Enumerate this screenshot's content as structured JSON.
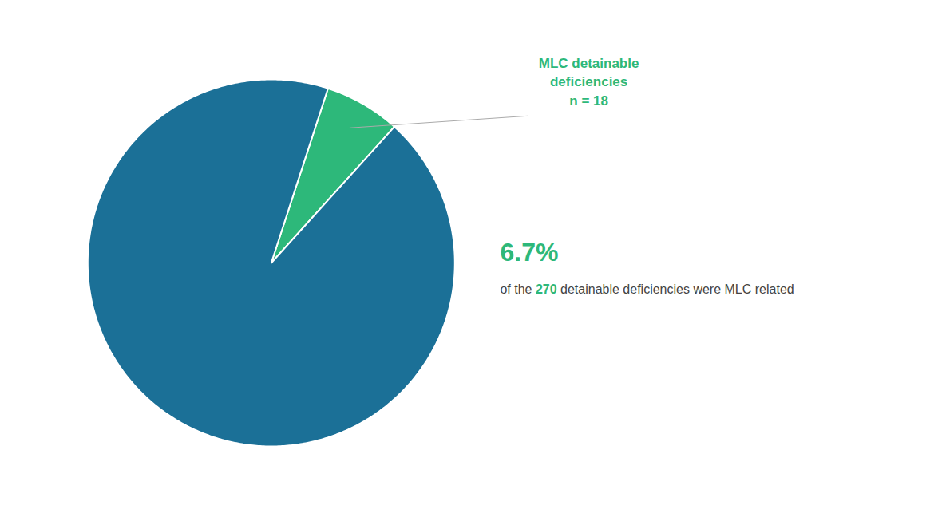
{
  "chart_data": {
    "type": "pie",
    "values": [
      6.7,
      93.3
    ],
    "colors": [
      "#2db87a",
      "#1b7097"
    ],
    "annotations": [
      {
        "text": "MLC detainable\ndeficiencies\nn = 18",
        "color": "#2db87a"
      },
      {
        "text": "6.7%",
        "color": "#2db87a"
      },
      {
        "text": [
          "of the ",
          "270",
          " detainable deficiencies were MLC related"
        ],
        "colors": [
          "#444444",
          "#2db87a",
          "#444444"
        ]
      }
    ]
  }
}
